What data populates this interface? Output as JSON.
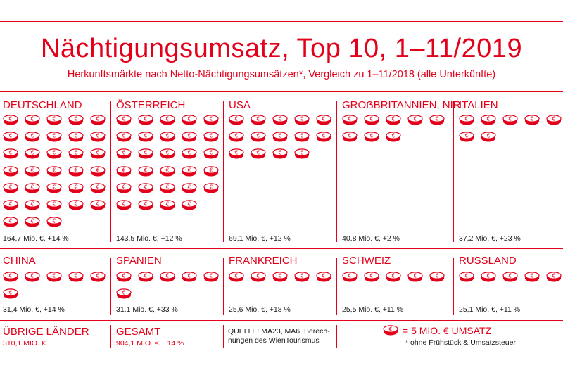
{
  "title": "Nächtigungsumsatz, Top 10, 1–11/2019",
  "subtitle": "Herkunftsmärkte nach Netto-Nächtigungsumsätzen*, Vergleich zu 1–11/2018 (alle Unterkünfte)",
  "coin_symbol": "€",
  "colors": {
    "accent": "#e2001a",
    "text": "#1a1a1a",
    "coin_fill": "#ffffff"
  },
  "chart_data": {
    "type": "pictograph",
    "unit_per_icon": 5,
    "unit": "Mio. €",
    "categories": [
      "DEUTSCHLAND",
      "ÖSTERREICH",
      "USA",
      "GROẞBRITANNIEN, NIR",
      "ITALIEN",
      "CHINA",
      "SPANIEN",
      "FRANKREICH",
      "SCHWEIZ",
      "RUSSLAND"
    ],
    "values": [
      164.7,
      143.5,
      69.1,
      40.8,
      37.2,
      31.4,
      31.1,
      25.6,
      25.5,
      25.1
    ],
    "changes_pct": [
      14,
      12,
      12,
      2,
      23,
      14,
      33,
      18,
      11,
      11
    ],
    "labels": [
      "164,7 Mio. €, +14 %",
      "143,5 Mio. €, +12 %",
      "69,1 Mio. €, +12 %",
      "40,8 Mio. €, +2 %",
      "37,2 Mio. €, +23 %",
      "31,4 Mio. €, +14 %",
      "31,1 Mio. €, +33 %",
      "25,6 Mio. €, +18 %",
      "25,5 Mio. €, +11 %",
      "25,1 Mio. €, +11 %"
    ],
    "icon_counts": [
      33,
      29,
      14,
      8,
      7,
      6,
      6,
      5,
      5,
      5
    ]
  },
  "footer": {
    "other_label": "ÜBRIGE LÄNDER",
    "other_value": "310,1 MIO. €",
    "total_label": "GESAMT",
    "total_value": "904,1 MIO. €, +14 %",
    "source_line1": "QUELLE: MA23, MA6, Berech-",
    "source_line2": "nungen des WienTourismus",
    "legend_text": "= 5 MIO. € UMSATZ",
    "legend_note": "* ohne Frühstück & Umsatzsteuer"
  }
}
